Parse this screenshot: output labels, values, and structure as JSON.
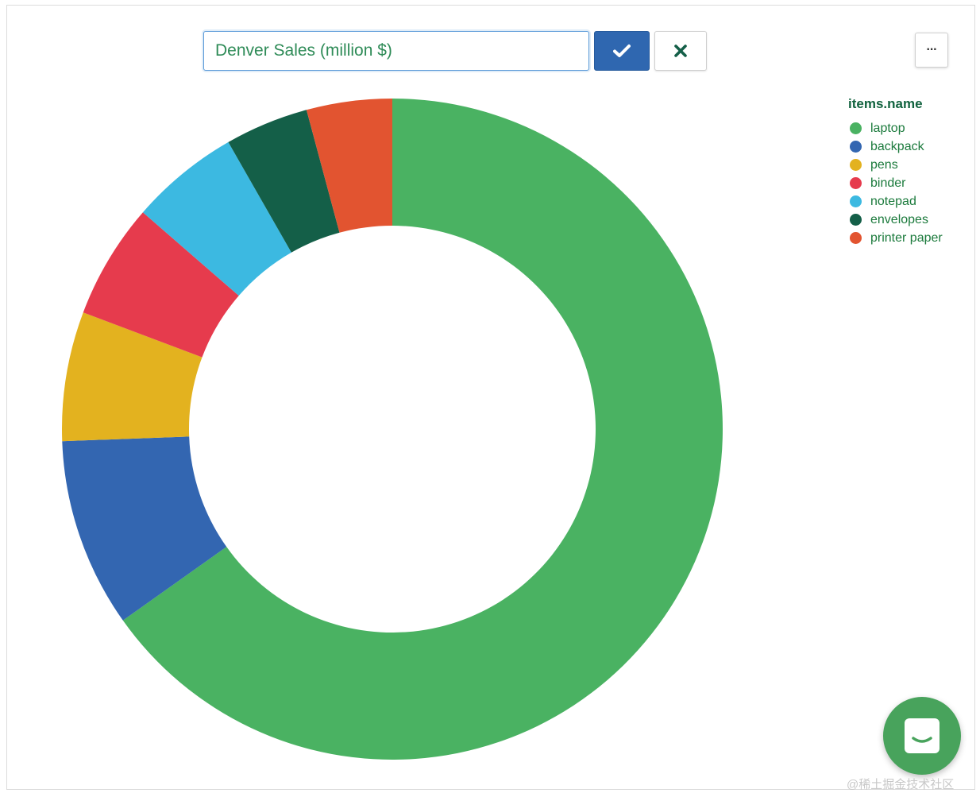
{
  "editor": {
    "title_value": "Denver Sales (million $)",
    "confirm_icon": "check-icon",
    "cancel_icon": "close-icon",
    "more_label": "···"
  },
  "colors": {
    "laptop": "#4ab262",
    "backpack": "#3366b1",
    "pens": "#e3b21f",
    "binder": "#e63b4d",
    "notepad": "#3cb9e1",
    "envelopes": "#145f48",
    "printer_paper": "#e25430",
    "legend_title": "#12633f",
    "legend_text": "#1b7a3c"
  },
  "chart_data": {
    "type": "pie",
    "subtype": "donut",
    "title": "Denver Sales (million $)",
    "legend_title": "items.name",
    "legend_position": "top-right",
    "categories": [
      "laptop",
      "backpack",
      "pens",
      "binder",
      "notepad",
      "envelopes",
      "printer paper"
    ],
    "values": [
      67,
      9.5,
      6.5,
      5.8,
      5.5,
      4.2,
      4.3
    ],
    "colors": [
      "#4ab262",
      "#3366b1",
      "#e3b21f",
      "#e63b4d",
      "#3cb9e1",
      "#145f48",
      "#e25430"
    ]
  },
  "chat": {
    "icon": "chat-icon"
  },
  "watermark": {
    "text": "@稀土掘金技术社区"
  }
}
